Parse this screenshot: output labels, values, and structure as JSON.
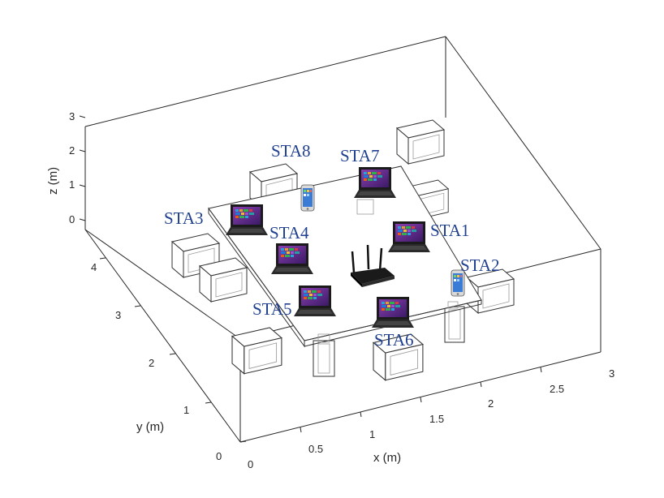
{
  "figure": {
    "axes": {
      "x": {
        "label": "x (m)",
        "ticks": [
          "0",
          "0.5",
          "1",
          "1.5",
          "2",
          "2.5",
          "3"
        ]
      },
      "y": {
        "label": "y (m)",
        "ticks": [
          "0",
          "1",
          "2",
          "3",
          "4"
        ]
      },
      "z": {
        "label": "z (m)",
        "ticks": [
          "0",
          "1",
          "2",
          "3"
        ]
      }
    },
    "stations": {
      "sta1": "STA1",
      "sta2": "STA2",
      "sta3": "STA3",
      "sta4": "STA4",
      "sta5": "STA5",
      "sta6": "STA6",
      "sta7": "STA7",
      "sta8": "STA8"
    },
    "colors": {
      "label": "#1f3f8f",
      "laptop_screen": "#6a2a8a",
      "phone_screen": "#3a7bd5",
      "router": "#1a1a1a"
    }
  }
}
